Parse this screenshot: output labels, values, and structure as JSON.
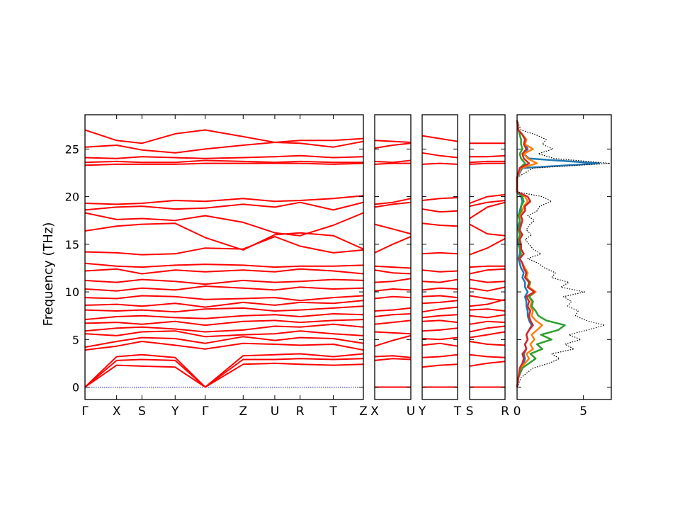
{
  "chart_data": {
    "type": "line",
    "ylabel": "Frequency (THz)",
    "ylim": [
      -1.3,
      28.6
    ],
    "yticks": [
      0,
      5,
      10,
      15,
      20,
      25
    ],
    "colors": {
      "bands": "#ff0000",
      "zero_line": "#0000aa",
      "total_dos": "#000000",
      "pdos": [
        "#1f77b4",
        "#ff7f0e",
        "#2ca02c",
        "#d62728"
      ]
    },
    "band_panels": [
      {
        "labels": [
          "Γ",
          "X",
          "S",
          "Y",
          "Γ",
          "Z",
          "U",
          "R",
          "T",
          "Z"
        ],
        "x": [
          0,
          0.2,
          0.36,
          0.57,
          0.76,
          1.0,
          1.2,
          1.36,
          1.57,
          1.76
        ],
        "bands": [
          [
            0,
            2.8,
            2.9,
            2.8,
            0,
            2.9,
            2.9,
            3.0,
            2.9,
            3.0
          ],
          [
            0,
            2.3,
            2.2,
            2.1,
            0,
            2.4,
            2.5,
            2.4,
            2.3,
            2.4
          ],
          [
            0,
            3.2,
            3.4,
            3.1,
            0,
            3.3,
            3.4,
            3.5,
            3.2,
            3.5
          ],
          [
            3.9,
            4.3,
            4.8,
            4.4,
            4.0,
            4.6,
            4.5,
            4.4,
            4.5,
            3.9
          ],
          [
            4.2,
            4.8,
            5.2,
            5.1,
            4.6,
            5.3,
            4.9,
            5.2,
            5.1,
            4.6
          ],
          [
            5.6,
            5.4,
            5.8,
            5.9,
            5.3,
            5.5,
            5.6,
            5.9,
            5.6,
            5.4
          ],
          [
            5.9,
            6.2,
            6.3,
            6.1,
            5.8,
            6.0,
            6.4,
            6.3,
            6.6,
            6.3
          ],
          [
            6.7,
            6.8,
            6.6,
            6.9,
            6.5,
            6.9,
            7.0,
            6.8,
            7.0,
            7.1
          ],
          [
            7.1,
            7.4,
            7.5,
            7.3,
            7.2,
            7.5,
            7.6,
            7.4,
            7.7,
            7.6
          ],
          [
            8.1,
            8.0,
            8.1,
            7.9,
            8.2,
            8.3,
            8.0,
            8.1,
            8.3,
            8.5
          ],
          [
            8.6,
            8.7,
            8.5,
            8.8,
            8.4,
            8.9,
            8.6,
            8.9,
            8.8,
            9.1
          ],
          [
            9.4,
            9.3,
            9.6,
            9.5,
            9.2,
            9.3,
            9.4,
            9.1,
            9.4,
            9.6
          ],
          [
            10.3,
            10.1,
            10.4,
            10.2,
            10.6,
            10.4,
            10.2,
            10.5,
            10.3,
            10.4
          ],
          [
            11.2,
            11.0,
            11.3,
            11.1,
            10.8,
            11.2,
            11.0,
            11.1,
            11.3,
            11.2
          ],
          [
            12.2,
            12.4,
            11.9,
            12.3,
            12.1,
            12.3,
            12.1,
            12.4,
            12.2,
            11.9
          ],
          [
            13.0,
            12.7,
            12.6,
            12.8,
            12.9,
            12.8,
            12.6,
            12.7,
            12.7,
            12.8
          ],
          [
            14.2,
            14.1,
            13.9,
            14.0,
            14.6,
            14.5,
            15.8,
            14.8,
            14.1,
            14.4
          ],
          [
            16.4,
            16.9,
            17.1,
            17.2,
            15.7,
            14.4,
            16.0,
            16.2,
            15.9,
            14.5
          ],
          [
            18.3,
            17.6,
            17.7,
            17.5,
            18.0,
            17.3,
            16.2,
            15.9,
            17.0,
            18.3
          ],
          [
            18.6,
            18.9,
            19.0,
            18.7,
            18.8,
            19.2,
            18.9,
            19.4,
            18.6,
            19.4
          ],
          [
            19.3,
            19.2,
            19.3,
            19.6,
            19.5,
            19.8,
            19.5,
            19.6,
            19.8,
            20.1
          ],
          [
            23.3,
            23.4,
            23.4,
            23.4,
            23.5,
            23.5,
            23.5,
            23.5,
            23.4,
            23.5
          ],
          [
            23.6,
            23.7,
            23.6,
            23.6,
            23.8,
            23.7,
            23.6,
            23.7,
            23.6,
            23.6
          ],
          [
            24.1,
            24.0,
            24.2,
            24.1,
            24.0,
            24.1,
            24.2,
            24.3,
            24.1,
            24.2
          ],
          [
            25.2,
            25.4,
            24.9,
            24.6,
            25.0,
            25.4,
            25.7,
            25.6,
            25.2,
            25.8
          ],
          [
            27.0,
            25.9,
            25.6,
            26.6,
            27.0,
            26.3,
            25.7,
            25.9,
            25.9,
            26.1
          ]
        ]
      },
      {
        "labels": [
          "X",
          "U"
        ],
        "x": [
          0,
          0.5,
          1
        ],
        "bands": [
          [
            0,
            0,
            0
          ],
          [
            2.8,
            3.0,
            2.9
          ],
          [
            3.2,
            3.3,
            3.1
          ],
          [
            4.3,
            4.9,
            5.4
          ],
          [
            5.8,
            5.7,
            5.6
          ],
          [
            6.6,
            6.8,
            7.0
          ],
          [
            7.4,
            7.6,
            7.7
          ],
          [
            8.0,
            8.1,
            8.3
          ],
          [
            9.3,
            9.5,
            9.4
          ],
          [
            10.1,
            10.3,
            10.2
          ],
          [
            11.0,
            11.1,
            11.4
          ],
          [
            12.3,
            12.0,
            11.9
          ],
          [
            12.7,
            12.6,
            12.5
          ],
          [
            14.1,
            15.0,
            15.8
          ],
          [
            17.1,
            16.6,
            16.1
          ],
          [
            18.9,
            19.2,
            19.4
          ],
          [
            19.2,
            19.4,
            19.8
          ],
          [
            23.4,
            23.5,
            23.5
          ],
          [
            23.7,
            23.6,
            23.8
          ],
          [
            25.1,
            25.4,
            25.6
          ],
          [
            25.9,
            25.8,
            25.7
          ]
        ]
      },
      {
        "labels": [
          "Y",
          "T"
        ],
        "x": [
          0,
          0.5,
          1
        ],
        "bands": [
          [
            0,
            0,
            0
          ],
          [
            2.1,
            2.3,
            2.4
          ],
          [
            3.1,
            3.2,
            3.4
          ],
          [
            4.4,
            4.6,
            4.3
          ],
          [
            5.1,
            5.0,
            5.2
          ],
          [
            5.9,
            6.0,
            6.2
          ],
          [
            6.9,
            7.0,
            6.8
          ],
          [
            7.3,
            7.5,
            7.6
          ],
          [
            7.9,
            8.2,
            8.4
          ],
          [
            8.8,
            8.9,
            9.1
          ],
          [
            9.5,
            9.6,
            9.4
          ],
          [
            10.2,
            10.4,
            10.3
          ],
          [
            11.1,
            11.0,
            11.3
          ],
          [
            12.3,
            12.1,
            12.2
          ],
          [
            14.0,
            14.1,
            14.0
          ],
          [
            17.2,
            17.0,
            16.9
          ],
          [
            18.7,
            18.4,
            18.5
          ],
          [
            19.6,
            19.8,
            19.9
          ],
          [
            23.4,
            23.5,
            23.4
          ],
          [
            24.6,
            24.3,
            24.1
          ],
          [
            26.4,
            26.1,
            25.8
          ]
        ]
      },
      {
        "labels": [
          "S",
          "R"
        ],
        "x": [
          0,
          0.5,
          1
        ],
        "bands": [
          [
            0,
            0,
            0
          ],
          [
            2.2,
            2.5,
            2.7
          ],
          [
            3.4,
            3.2,
            3.1
          ],
          [
            4.8,
            4.5,
            4.4
          ],
          [
            5.2,
            5.5,
            5.8
          ],
          [
            5.8,
            6.2,
            6.4
          ],
          [
            6.6,
            6.9,
            6.8
          ],
          [
            7.5,
            7.3,
            7.6
          ],
          [
            8.1,
            8.2,
            8.0
          ],
          [
            8.5,
            8.7,
            9.2
          ],
          [
            9.6,
            9.3,
            9.1
          ],
          [
            10.4,
            10.1,
            10.5
          ],
          [
            11.3,
            11.0,
            11.1
          ],
          [
            11.9,
            12.3,
            12.4
          ],
          [
            12.6,
            12.7,
            12.7
          ],
          [
            13.9,
            14.6,
            15.6
          ],
          [
            17.1,
            16.1,
            15.9
          ],
          [
            17.7,
            18.9,
            19.4
          ],
          [
            19.0,
            19.4,
            19.6
          ],
          [
            19.3,
            20.0,
            20.2
          ],
          [
            23.4,
            23.5,
            23.5
          ],
          [
            23.6,
            23.7,
            23.7
          ],
          [
            24.2,
            24.2,
            24.3
          ],
          [
            25.6,
            25.6,
            25.6
          ]
        ]
      }
    ],
    "dos_panel": {
      "xticks": [
        0,
        5
      ],
      "xlim": [
        0,
        7.1
      ],
      "freq": [
        0,
        1,
        2,
        2.5,
        3,
        3.5,
        4,
        4.5,
        5,
        5.5,
        6,
        6.5,
        7,
        7.5,
        8,
        8.5,
        9,
        9.5,
        10,
        10.5,
        11,
        11.5,
        12,
        12.5,
        13,
        13.5,
        14,
        14.5,
        15,
        15.5,
        16,
        16.5,
        17,
        17.5,
        18,
        18.5,
        19,
        19.5,
        20,
        20.5,
        21,
        22,
        23,
        23.5,
        24,
        24.5,
        25,
        25.5,
        26,
        26.5,
        27,
        28
      ],
      "total": [
        0,
        0.3,
        1.2,
        2.4,
        3.2,
        2.6,
        4.3,
        3.6,
        4.8,
        3.9,
        5.3,
        6.6,
        5.2,
        4.4,
        4.6,
        3.8,
        4.1,
        3.5,
        5.1,
        3.3,
        3.9,
        2.6,
        2.9,
        2.1,
        1.6,
        0.8,
        1.8,
        1.2,
        0.9,
        0.6,
        1.1,
        0.7,
        0.9,
        1.3,
        0.8,
        1.5,
        1.7,
        2.6,
        1.9,
        0,
        0,
        0,
        1.2,
        7.0,
        2.8,
        1.6,
        2.7,
        1.9,
        2.2,
        1.4,
        0.3,
        0
      ],
      "pdos": [
        [
          0,
          0.1,
          0.3,
          0.5,
          0.6,
          0.5,
          0.7,
          0.6,
          0.8,
          0.7,
          0.9,
          1.1,
          0.9,
          0.8,
          0.8,
          0.7,
          0.7,
          0.6,
          0.8,
          0.6,
          0.6,
          0.4,
          0.5,
          0.3,
          0.2,
          0.1,
          0.2,
          0.2,
          0.1,
          0.1,
          0.2,
          0.1,
          0.1,
          0.2,
          0.1,
          0.2,
          0.3,
          0.4,
          0.3,
          0,
          0,
          0,
          0.4,
          6.2,
          0.9,
          0.5,
          0.8,
          0.6,
          0.7,
          0.4,
          0.1,
          0
        ],
        [
          0,
          0.1,
          0.3,
          0.6,
          0.9,
          0.7,
          1.2,
          1.0,
          1.3,
          1.1,
          1.5,
          1.9,
          1.4,
          1.1,
          1.2,
          1.0,
          1.1,
          0.9,
          1.4,
          0.9,
          1.0,
          0.7,
          0.8,
          0.6,
          0.4,
          0.2,
          0.5,
          0.3,
          0.3,
          0.2,
          0.3,
          0.2,
          0.2,
          0.4,
          0.2,
          0.4,
          0.5,
          0.8,
          0.6,
          0,
          0,
          0,
          0.3,
          1.5,
          0.8,
          0.5,
          1.2,
          0.6,
          0.7,
          0.4,
          0.1,
          0
        ],
        [
          0,
          0.1,
          0.4,
          0.9,
          1.4,
          1.0,
          1.9,
          1.5,
          2.6,
          1.8,
          3.1,
          3.6,
          2.2,
          1.6,
          1.4,
          1.1,
          1.2,
          0.9,
          1.3,
          0.8,
          1.0,
          0.6,
          0.7,
          0.5,
          0.4,
          0.2,
          0.3,
          0.2,
          0.2,
          0.1,
          0.2,
          0.1,
          0.2,
          0.2,
          0.1,
          0.3,
          0.3,
          0.5,
          0.4,
          0,
          0,
          0,
          0.2,
          0.6,
          0.3,
          0.2,
          0.4,
          0.3,
          0.3,
          0.2,
          0.1,
          0
        ],
        [
          0,
          0.1,
          0.2,
          0.4,
          0.5,
          0.4,
          0.7,
          0.6,
          0.8,
          0.7,
          0.9,
          1.2,
          1.0,
          0.9,
          1.0,
          0.8,
          0.9,
          0.7,
          1.3,
          0.8,
          0.9,
          0.6,
          0.7,
          0.5,
          0.4,
          0.2,
          0.5,
          0.3,
          0.3,
          0.2,
          0.4,
          0.2,
          0.3,
          0.4,
          0.3,
          0.6,
          0.6,
          1.0,
          0.8,
          0,
          0,
          0,
          0.2,
          0.9,
          0.5,
          0.4,
          0.7,
          0.5,
          0.6,
          0.4,
          0.1,
          0
        ]
      ]
    }
  }
}
